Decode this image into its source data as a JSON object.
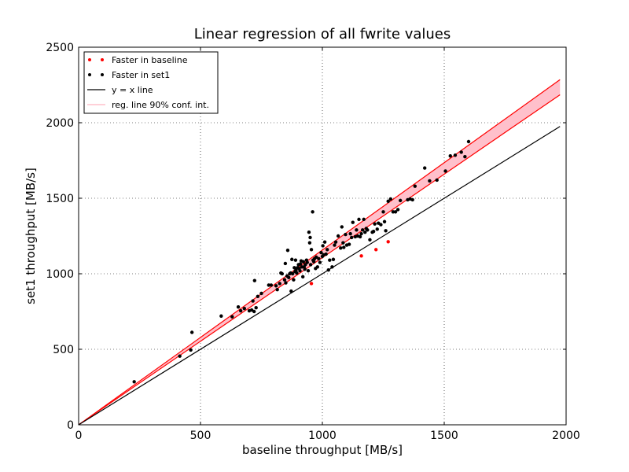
{
  "chart_data": {
    "type": "scatter",
    "title": "Linear regression of all fwrite values",
    "xlabel": "baseline throughput [MB/s]",
    "ylabel": "set1 throughput [MB/s]",
    "xlim": [
      0,
      2000
    ],
    "ylim": [
      0,
      2500
    ],
    "xticks": [
      0,
      500,
      1000,
      1500,
      2000
    ],
    "yticks": [
      0,
      500,
      1000,
      1500,
      2000,
      2500
    ],
    "grid": true,
    "legend_position": "top-left",
    "colors": {
      "baseline": "#ff0000",
      "set1": "#000000",
      "identity": "#000000",
      "band": "#ffc0cb"
    },
    "legend": [
      {
        "label": "Faster in baseline",
        "kind": "points",
        "color": "#ff0000"
      },
      {
        "label": "Faster in set1",
        "kind": "points",
        "color": "#000000"
      },
      {
        "label": "y = x line",
        "kind": "line",
        "color": "#000000"
      },
      {
        "label": "reg. line 90% conf. int.",
        "kind": "band",
        "color": "#ffc0cb"
      }
    ],
    "series": [
      {
        "name": "Faster in baseline",
        "color": "#ff0000",
        "points": [
          [
            955,
            935
          ],
          [
            1160,
            1118
          ],
          [
            1220,
            1160
          ],
          [
            1270,
            1212
          ]
        ]
      },
      {
        "name": "Faster in set1",
        "color": "#000000",
        "points": [
          [
            228,
            285
          ],
          [
            415,
            455
          ],
          [
            460,
            495
          ],
          [
            465,
            612
          ],
          [
            585,
            720
          ],
          [
            630,
            715
          ],
          [
            655,
            780
          ],
          [
            665,
            755
          ],
          [
            680,
            770
          ],
          [
            700,
            755
          ],
          [
            710,
            760
          ],
          [
            715,
            820
          ],
          [
            720,
            750
          ],
          [
            722,
            955
          ],
          [
            728,
            775
          ],
          [
            735,
            850
          ],
          [
            750,
            870
          ],
          [
            780,
            925
          ],
          [
            790,
            925
          ],
          [
            810,
            920
          ],
          [
            815,
            895
          ],
          [
            825,
            935
          ],
          [
            830,
            1005
          ],
          [
            835,
            1000
          ],
          [
            845,
            960
          ],
          [
            848,
            1068
          ],
          [
            850,
            940
          ],
          [
            855,
            985
          ],
          [
            858,
            1155
          ],
          [
            862,
            975
          ],
          [
            866,
            1000
          ],
          [
            870,
            1005
          ],
          [
            872,
            885
          ],
          [
            875,
            1095
          ],
          [
            878,
            1000
          ],
          [
            882,
            960
          ],
          [
            885,
            1040
          ],
          [
            888,
            1015
          ],
          [
            890,
            1090
          ],
          [
            892,
            1025
          ],
          [
            895,
            1005
          ],
          [
            898,
            1040
          ],
          [
            902,
            1060
          ],
          [
            905,
            1035
          ],
          [
            908,
            1020
          ],
          [
            910,
            1065
          ],
          [
            913,
            1085
          ],
          [
            916,
            1045
          ],
          [
            920,
            980
          ],
          [
            922,
            1080
          ],
          [
            925,
            1045
          ],
          [
            928,
            1030
          ],
          [
            930,
            1060
          ],
          [
            935,
            1090
          ],
          [
            938,
            1075
          ],
          [
            942,
            1020
          ],
          [
            945,
            1275
          ],
          [
            948,
            1205
          ],
          [
            950,
            1240
          ],
          [
            952,
            1060
          ],
          [
            955,
            1160
          ],
          [
            960,
            1410
          ],
          [
            962,
            1090
          ],
          [
            965,
            1080
          ],
          [
            968,
            1100
          ],
          [
            972,
            1035
          ],
          [
            975,
            1110
          ],
          [
            980,
            1045
          ],
          [
            985,
            1100
          ],
          [
            990,
            1075
          ],
          [
            995,
            1140
          ],
          [
            1000,
            1115
          ],
          [
            1002,
            1185
          ],
          [
            1005,
            1125
          ],
          [
            1010,
            1210
          ],
          [
            1015,
            1130
          ],
          [
            1020,
            1160
          ],
          [
            1025,
            1025
          ],
          [
            1030,
            1090
          ],
          [
            1040,
            1045
          ],
          [
            1045,
            1095
          ],
          [
            1050,
            1190
          ],
          [
            1055,
            1210
          ],
          [
            1065,
            1250
          ],
          [
            1075,
            1170
          ],
          [
            1080,
            1310
          ],
          [
            1085,
            1205
          ],
          [
            1088,
            1175
          ],
          [
            1095,
            1260
          ],
          [
            1100,
            1190
          ],
          [
            1110,
            1195
          ],
          [
            1115,
            1265
          ],
          [
            1120,
            1240
          ],
          [
            1125,
            1340
          ],
          [
            1135,
            1245
          ],
          [
            1140,
            1290
          ],
          [
            1145,
            1250
          ],
          [
            1150,
            1360
          ],
          [
            1155,
            1245
          ],
          [
            1160,
            1265
          ],
          [
            1165,
            1290
          ],
          [
            1170,
            1360
          ],
          [
            1175,
            1275
          ],
          [
            1180,
            1300
          ],
          [
            1185,
            1290
          ],
          [
            1195,
            1225
          ],
          [
            1205,
            1275
          ],
          [
            1210,
            1280
          ],
          [
            1215,
            1330
          ],
          [
            1225,
            1295
          ],
          [
            1230,
            1335
          ],
          [
            1240,
            1325
          ],
          [
            1250,
            1410
          ],
          [
            1255,
            1345
          ],
          [
            1260,
            1285
          ],
          [
            1270,
            1480
          ],
          [
            1280,
            1495
          ],
          [
            1290,
            1410
          ],
          [
            1300,
            1410
          ],
          [
            1310,
            1425
          ],
          [
            1320,
            1485
          ],
          [
            1350,
            1490
          ],
          [
            1360,
            1495
          ],
          [
            1370,
            1490
          ],
          [
            1380,
            1580
          ],
          [
            1420,
            1700
          ],
          [
            1440,
            1615
          ],
          [
            1470,
            1620
          ],
          [
            1505,
            1680
          ],
          [
            1525,
            1780
          ],
          [
            1545,
            1785
          ],
          [
            1570,
            1805
          ],
          [
            1585,
            1775
          ],
          [
            1600,
            1875
          ]
        ]
      }
    ],
    "identity_line": {
      "label": "y = x line",
      "x": [
        0,
        1975
      ],
      "y": [
        0,
        1975
      ]
    },
    "regression_band": {
      "label": "reg. line 90% conf. int.",
      "x": [
        0,
        1975
      ],
      "lower": [
        0,
        2185
      ],
      "upper": [
        0,
        2285
      ]
    }
  }
}
